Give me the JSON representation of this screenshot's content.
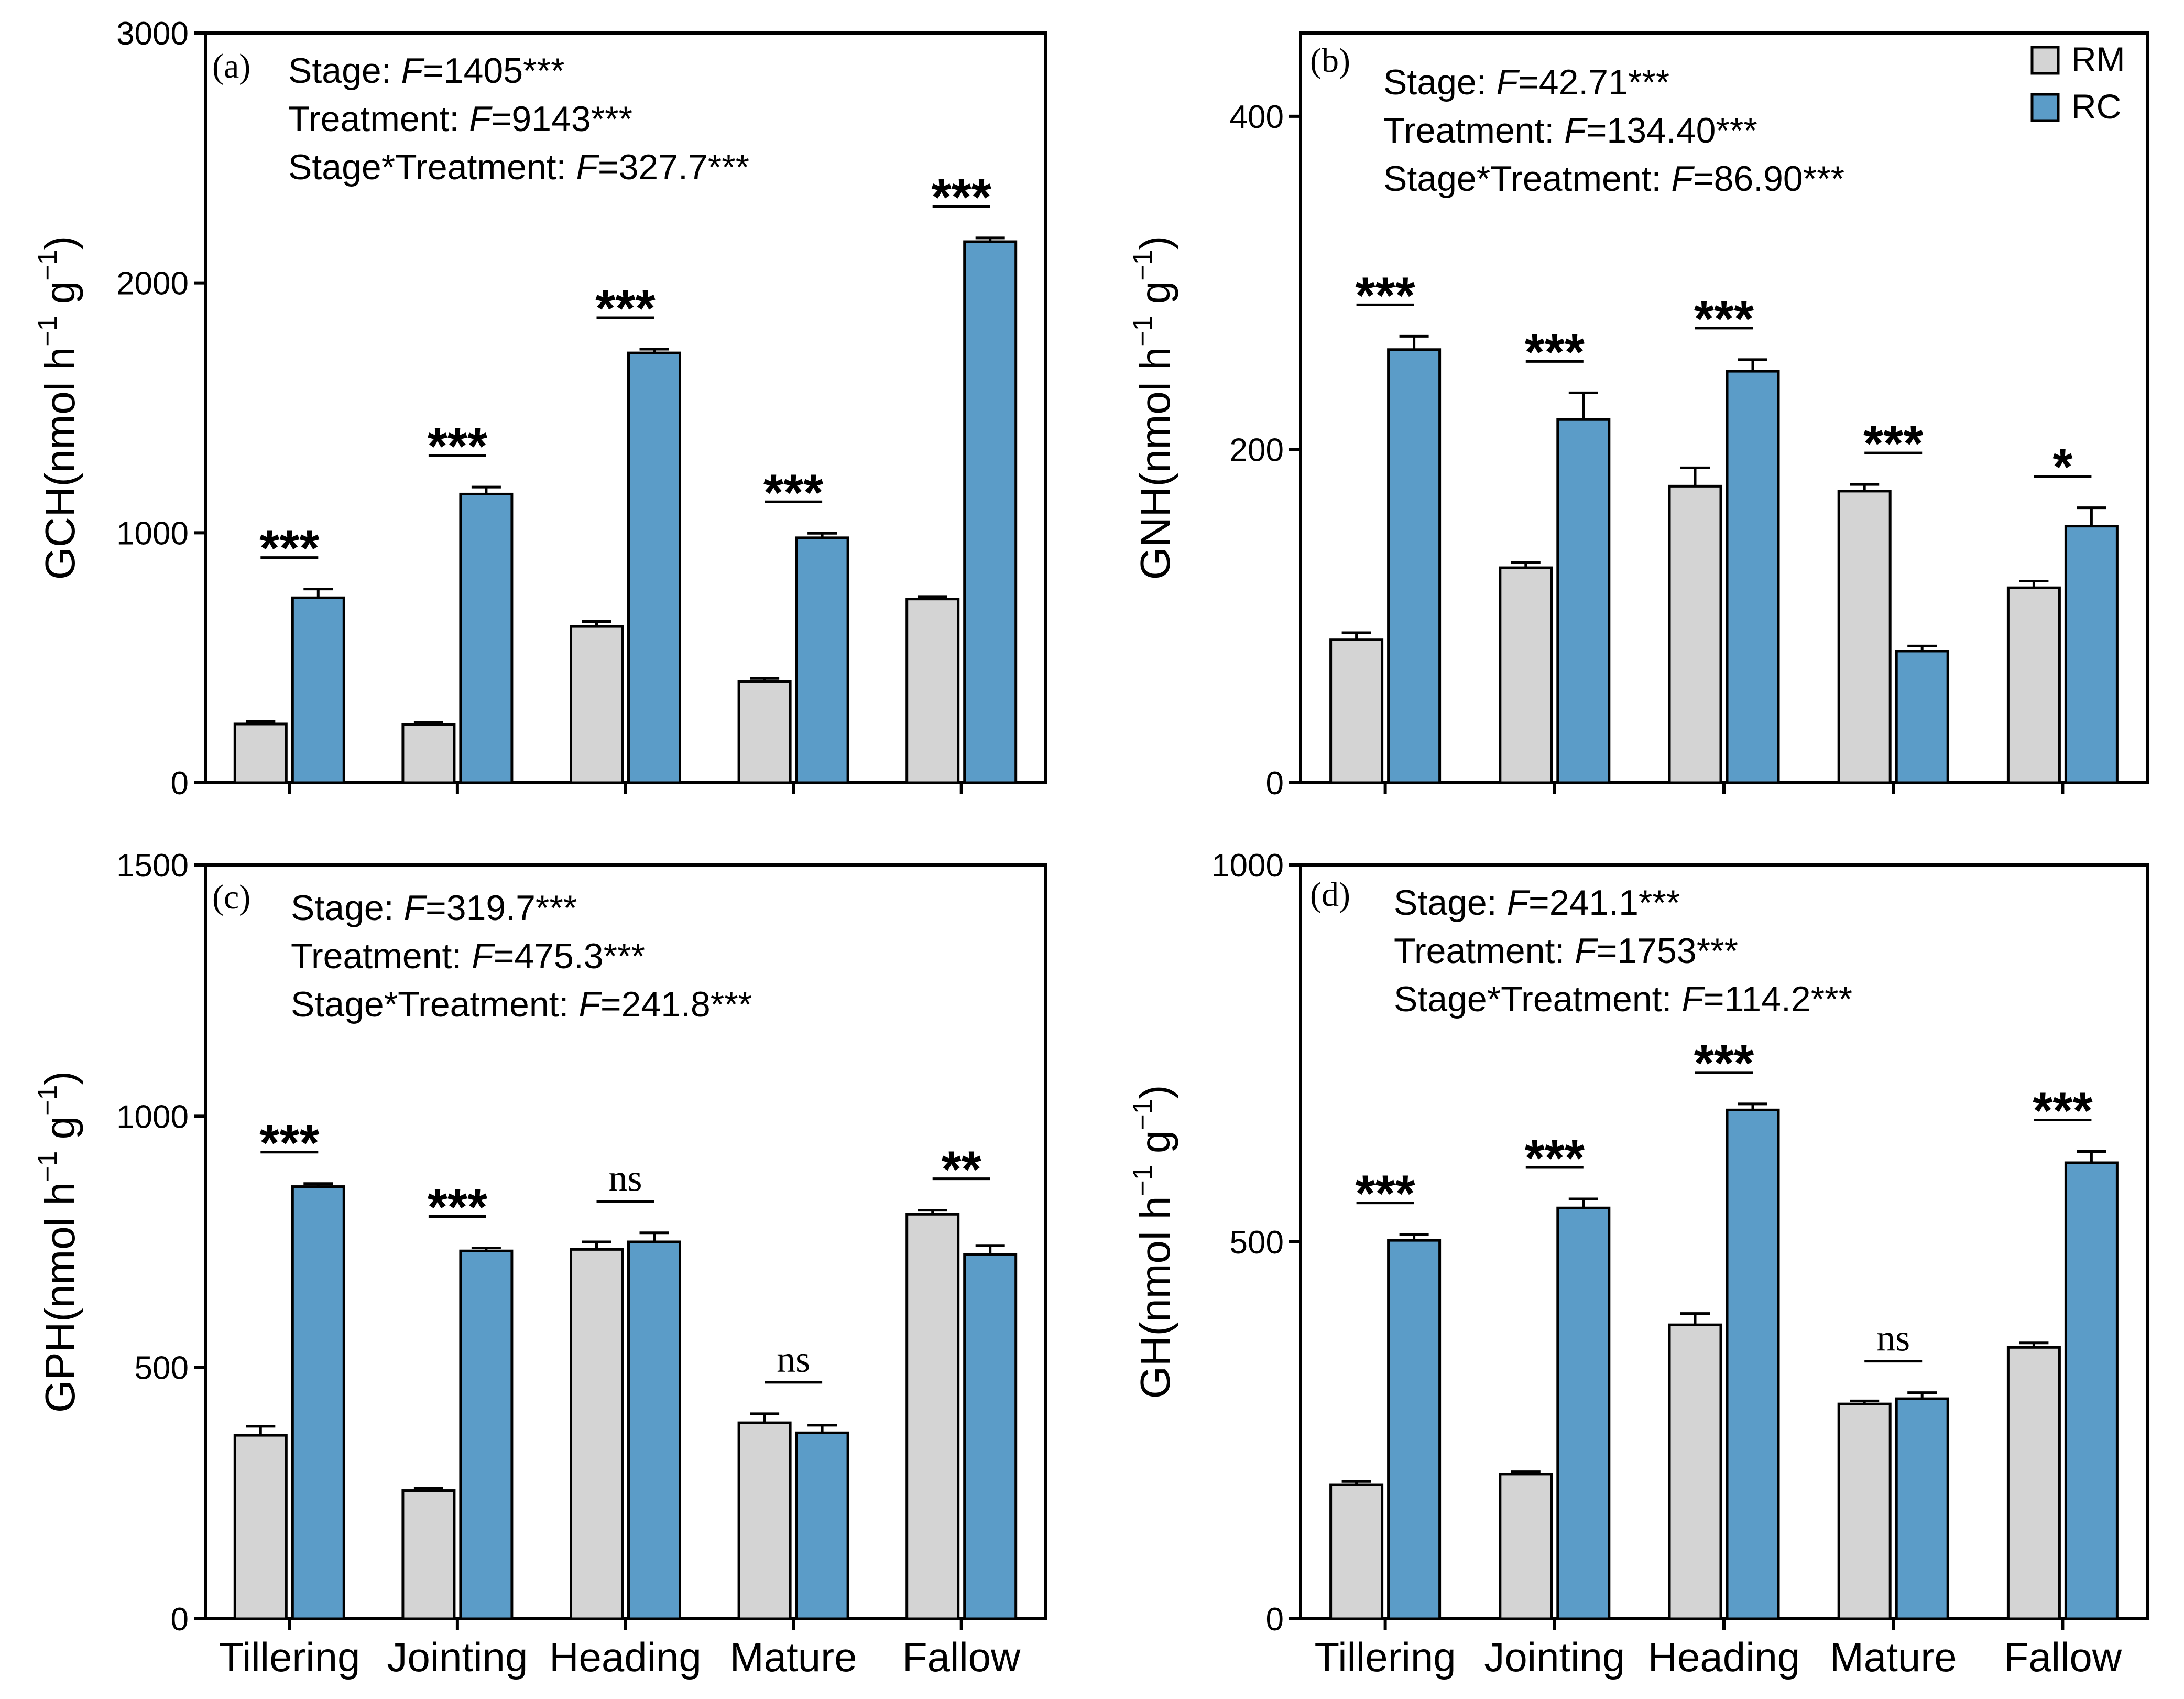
{
  "legend": [
    {
      "label": "RM",
      "color": "#d4d4d4"
    },
    {
      "label": "RC",
      "color": "#5b9cc8"
    }
  ],
  "chart_data": [
    {
      "type": "bar",
      "panel_label": "(a)",
      "ylabel": {
        "main": "GCH(nmol h",
        "exp1": "−1",
        "mid": " g",
        "exp2": "−1",
        "end": ")"
      },
      "ylim": [
        0,
        3000
      ],
      "yticks": [
        0,
        1000,
        2000,
        3000
      ],
      "categories": [
        "Tillering",
        "Jointing",
        "Heading",
        "Mature",
        "Fallow"
      ],
      "show_category_labels": false,
      "series": [
        {
          "name": "RM",
          "values": [
            235,
            232,
            625,
            405,
            735
          ],
          "errors": [
            10,
            10,
            20,
            12,
            10
          ]
        },
        {
          "name": "RC",
          "values": [
            740,
            1155,
            1720,
            980,
            2165
          ],
          "errors": [
            35,
            28,
            15,
            18,
            15
          ]
        }
      ],
      "significance": [
        "***",
        "***",
        "***",
        "***",
        "***"
      ],
      "stats": [
        {
          "prefix": "Stage: ",
          "f": "F",
          "value": "=1405***"
        },
        {
          "prefix": "Treatment: ",
          "f": "F",
          "value": "=9143***"
        },
        {
          "prefix": "Stage*Treatment: ",
          "f": "F",
          "value": "=327.7***"
        }
      ]
    },
    {
      "type": "bar",
      "panel_label": "(b)",
      "ylabel": {
        "main": "GNH(nmol h",
        "exp1": "−1",
        "mid": " g",
        "exp2": "−1",
        "end": ")"
      },
      "ylim": [
        0,
        450
      ],
      "yticks": [
        0,
        200,
        400
      ],
      "categories": [
        "Tillering",
        "Jointing",
        "Heading",
        "Mature",
        "Fallow"
      ],
      "show_category_labels": false,
      "series": [
        {
          "name": "RM",
          "values": [
            86,
            129,
            178,
            175,
            117
          ],
          "errors": [
            4,
            3,
            11,
            4,
            4
          ]
        },
        {
          "name": "RC",
          "values": [
            260,
            218,
            247,
            79,
            154
          ],
          "errors": [
            8,
            16,
            7,
            3,
            11
          ]
        }
      ],
      "significance": [
        "***",
        "***",
        "***",
        "***",
        "*"
      ],
      "stats": [
        {
          "prefix": "Stage: ",
          "f": "F",
          "value": "=42.71***"
        },
        {
          "prefix": "Treatment: ",
          "f": "F",
          "value": "=134.40***"
        },
        {
          "prefix": "Stage*Treatment: ",
          "f": "F",
          "value": "=86.90***"
        }
      ]
    },
    {
      "type": "bar",
      "panel_label": "(c)",
      "ylabel": {
        "main": "GPH(nmol h",
        "exp1": "−1",
        "mid": " g",
        "exp2": "−1",
        "end": ")"
      },
      "ylim": [
        0,
        1500
      ],
      "yticks": [
        0,
        500,
        1000,
        1500
      ],
      "categories": [
        "Tillering",
        "Jointing",
        "Heading",
        "Mature",
        "Fallow"
      ],
      "show_category_labels": true,
      "series": [
        {
          "name": "RM",
          "values": [
            365,
            255,
            735,
            390,
            805
          ],
          "errors": [
            18,
            5,
            15,
            18,
            8
          ]
        },
        {
          "name": "RC",
          "values": [
            860,
            732,
            750,
            370,
            725
          ],
          "errors": [
            6,
            6,
            18,
            15,
            18
          ]
        }
      ],
      "significance": [
        "***",
        "***",
        "ns",
        "ns",
        "**"
      ],
      "stats": [
        {
          "prefix": "Stage: ",
          "f": "F",
          "value": "=319.7***"
        },
        {
          "prefix": "Treatment: ",
          "f": "F",
          "value": "=475.3***"
        },
        {
          "prefix": "Stage*Treatment: ",
          "f": "F",
          "value": "=241.8***"
        }
      ]
    },
    {
      "type": "bar",
      "panel_label": "(d)",
      "ylabel": {
        "main": "GH(nmol h",
        "exp1": "−1",
        "mid": " g",
        "exp2": "−1",
        "end": ")"
      },
      "ylim": [
        0,
        1000
      ],
      "yticks": [
        0,
        500,
        1000
      ],
      "categories": [
        "Tillering",
        "Jointing",
        "Heading",
        "Mature",
        "Fallow"
      ],
      "show_category_labels": true,
      "series": [
        {
          "name": "RM",
          "values": [
            178,
            192,
            390,
            285,
            360
          ],
          "errors": [
            4,
            3,
            15,
            4,
            6
          ]
        },
        {
          "name": "RC",
          "values": [
            502,
            545,
            675,
            292,
            605
          ],
          "errors": [
            8,
            12,
            8,
            8,
            15
          ]
        }
      ],
      "significance": [
        "***",
        "***",
        "***",
        "ns",
        "***"
      ],
      "stats": [
        {
          "prefix": "Stage: ",
          "f": "F",
          "value": "=241.1***"
        },
        {
          "prefix": "Treatment: ",
          "f": "F",
          "value": "=1753***"
        },
        {
          "prefix": "Stage*Treatment: ",
          "f": "F",
          "value": "=114.2***"
        }
      ]
    }
  ]
}
